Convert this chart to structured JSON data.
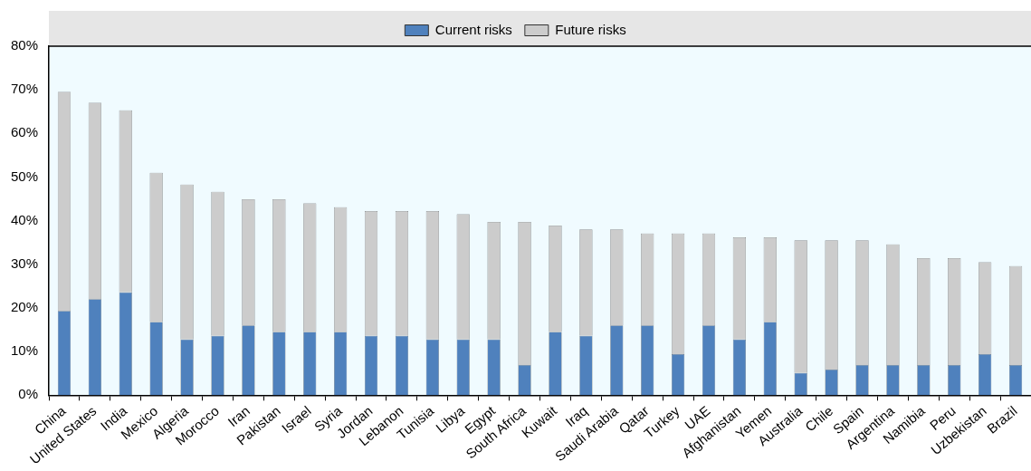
{
  "chart_data": {
    "type": "bar",
    "stacked": true,
    "legend": "top",
    "grid": false,
    "categories": [
      "China",
      "United States",
      "India",
      "Mexico",
      "Algeria",
      "Morocco",
      "Iran",
      "Pakistan",
      "Israel",
      "Syria",
      "Jordan",
      "Lebanon",
      "Tunisia",
      "Libya",
      "Egypt",
      "South Africa",
      "Kuwait",
      "Iraq",
      "Saudi Arabia",
      "Qatar",
      "Turkey",
      "UAE",
      "Afghanistan",
      "Yemen",
      "Australia",
      "Chile",
      "Spain",
      "Argentina",
      "Namibia",
      "Peru",
      "Uzbekistan",
      "Brazil"
    ],
    "series": [
      {
        "name": "Current risks",
        "color": "#4f81bd",
        "values": [
          19.3,
          22,
          23.6,
          16.8,
          12.8,
          13.6,
          16,
          14.5,
          14.5,
          14.5,
          13.6,
          13.6,
          12.8,
          12.8,
          12.8,
          6.9,
          14.5,
          13.6,
          16,
          16,
          9.4,
          16,
          12.8,
          16.8,
          5.1,
          5.9,
          6.9,
          6.9,
          6.9,
          6.9,
          9.4,
          6.9
        ]
      },
      {
        "name": "Future risks",
        "color": "#cccccc",
        "values": [
          50.2,
          45,
          41.7,
          34.2,
          35.5,
          33,
          28.9,
          30.4,
          29.5,
          28.6,
          28.6,
          28.6,
          29.4,
          28.7,
          26.9,
          32.8,
          24.4,
          24.4,
          22,
          21.1,
          27.7,
          21.1,
          23.4,
          19.4,
          30.4,
          29.6,
          28.6,
          27.7,
          24.5,
          24.5,
          21.1,
          22.7
        ]
      }
    ],
    "ylim": [
      0,
      80
    ],
    "yticks": [
      {
        "value": 0,
        "label": "0%"
      },
      {
        "value": 10,
        "label": "10%"
      },
      {
        "value": 20,
        "label": "20%"
      },
      {
        "value": 30,
        "label": "30%"
      },
      {
        "value": 40,
        "label": "40%"
      },
      {
        "value": 50,
        "label": "50%"
      },
      {
        "value": 60,
        "label": "60%"
      },
      {
        "value": 70,
        "label": "70%"
      },
      {
        "value": 80,
        "label": "80%"
      }
    ]
  }
}
